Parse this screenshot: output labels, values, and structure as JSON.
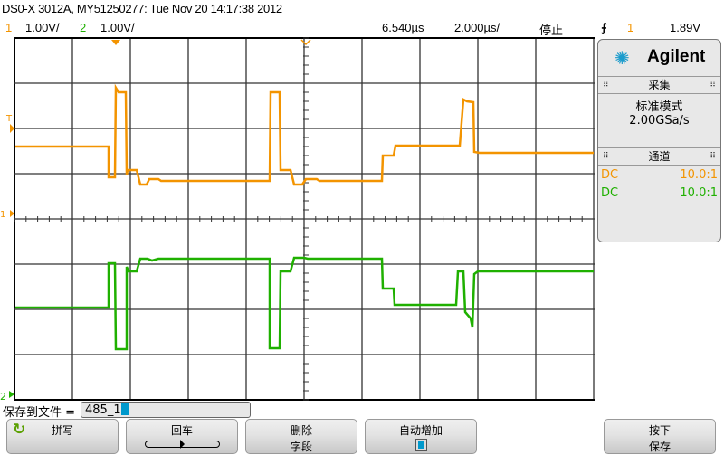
{
  "header": {
    "title": "DS0-X 3012A, MY51250277: Tue Nov 20 14:17:38 2012"
  },
  "status": {
    "ch1_num": "1",
    "ch1_scale": "1.00V/",
    "ch2_num": "2",
    "ch2_scale": "1.00V/",
    "delay": "6.540µs",
    "timebase": "2.000µs/",
    "run_state": "停止",
    "trigger_icon": "rising-edge-icon",
    "trigger_source": "1",
    "trigger_level": "1.89V"
  },
  "colors": {
    "ch1": "#f39400",
    "ch2": "#1fb000",
    "accent": "#0099cc"
  },
  "markers": {
    "trigger_level": "T",
    "ch1_ground": "1",
    "ch2_ground": "2"
  },
  "panel": {
    "brand": "Agilent",
    "acq_header": "采集",
    "acq_mode": "标准模式",
    "sample_rate": "2.00GSa/s",
    "channel_header": "通道",
    "channels": [
      {
        "coupling": "DC",
        "probe": "10.0:1"
      },
      {
        "coupling": "DC",
        "probe": "10.0:1"
      }
    ]
  },
  "file": {
    "label": "保存到文件 =",
    "value": "485_1"
  },
  "softkeys": [
    {
      "l1": "拼写",
      "l2": ""
    },
    {
      "l1": "回车",
      "l2": ""
    },
    {
      "l1": "删除",
      "l2": "字段"
    },
    {
      "l1": "自动增加",
      "l2": ""
    },
    {
      "l1": "按下",
      "l2": "保存"
    }
  ]
}
